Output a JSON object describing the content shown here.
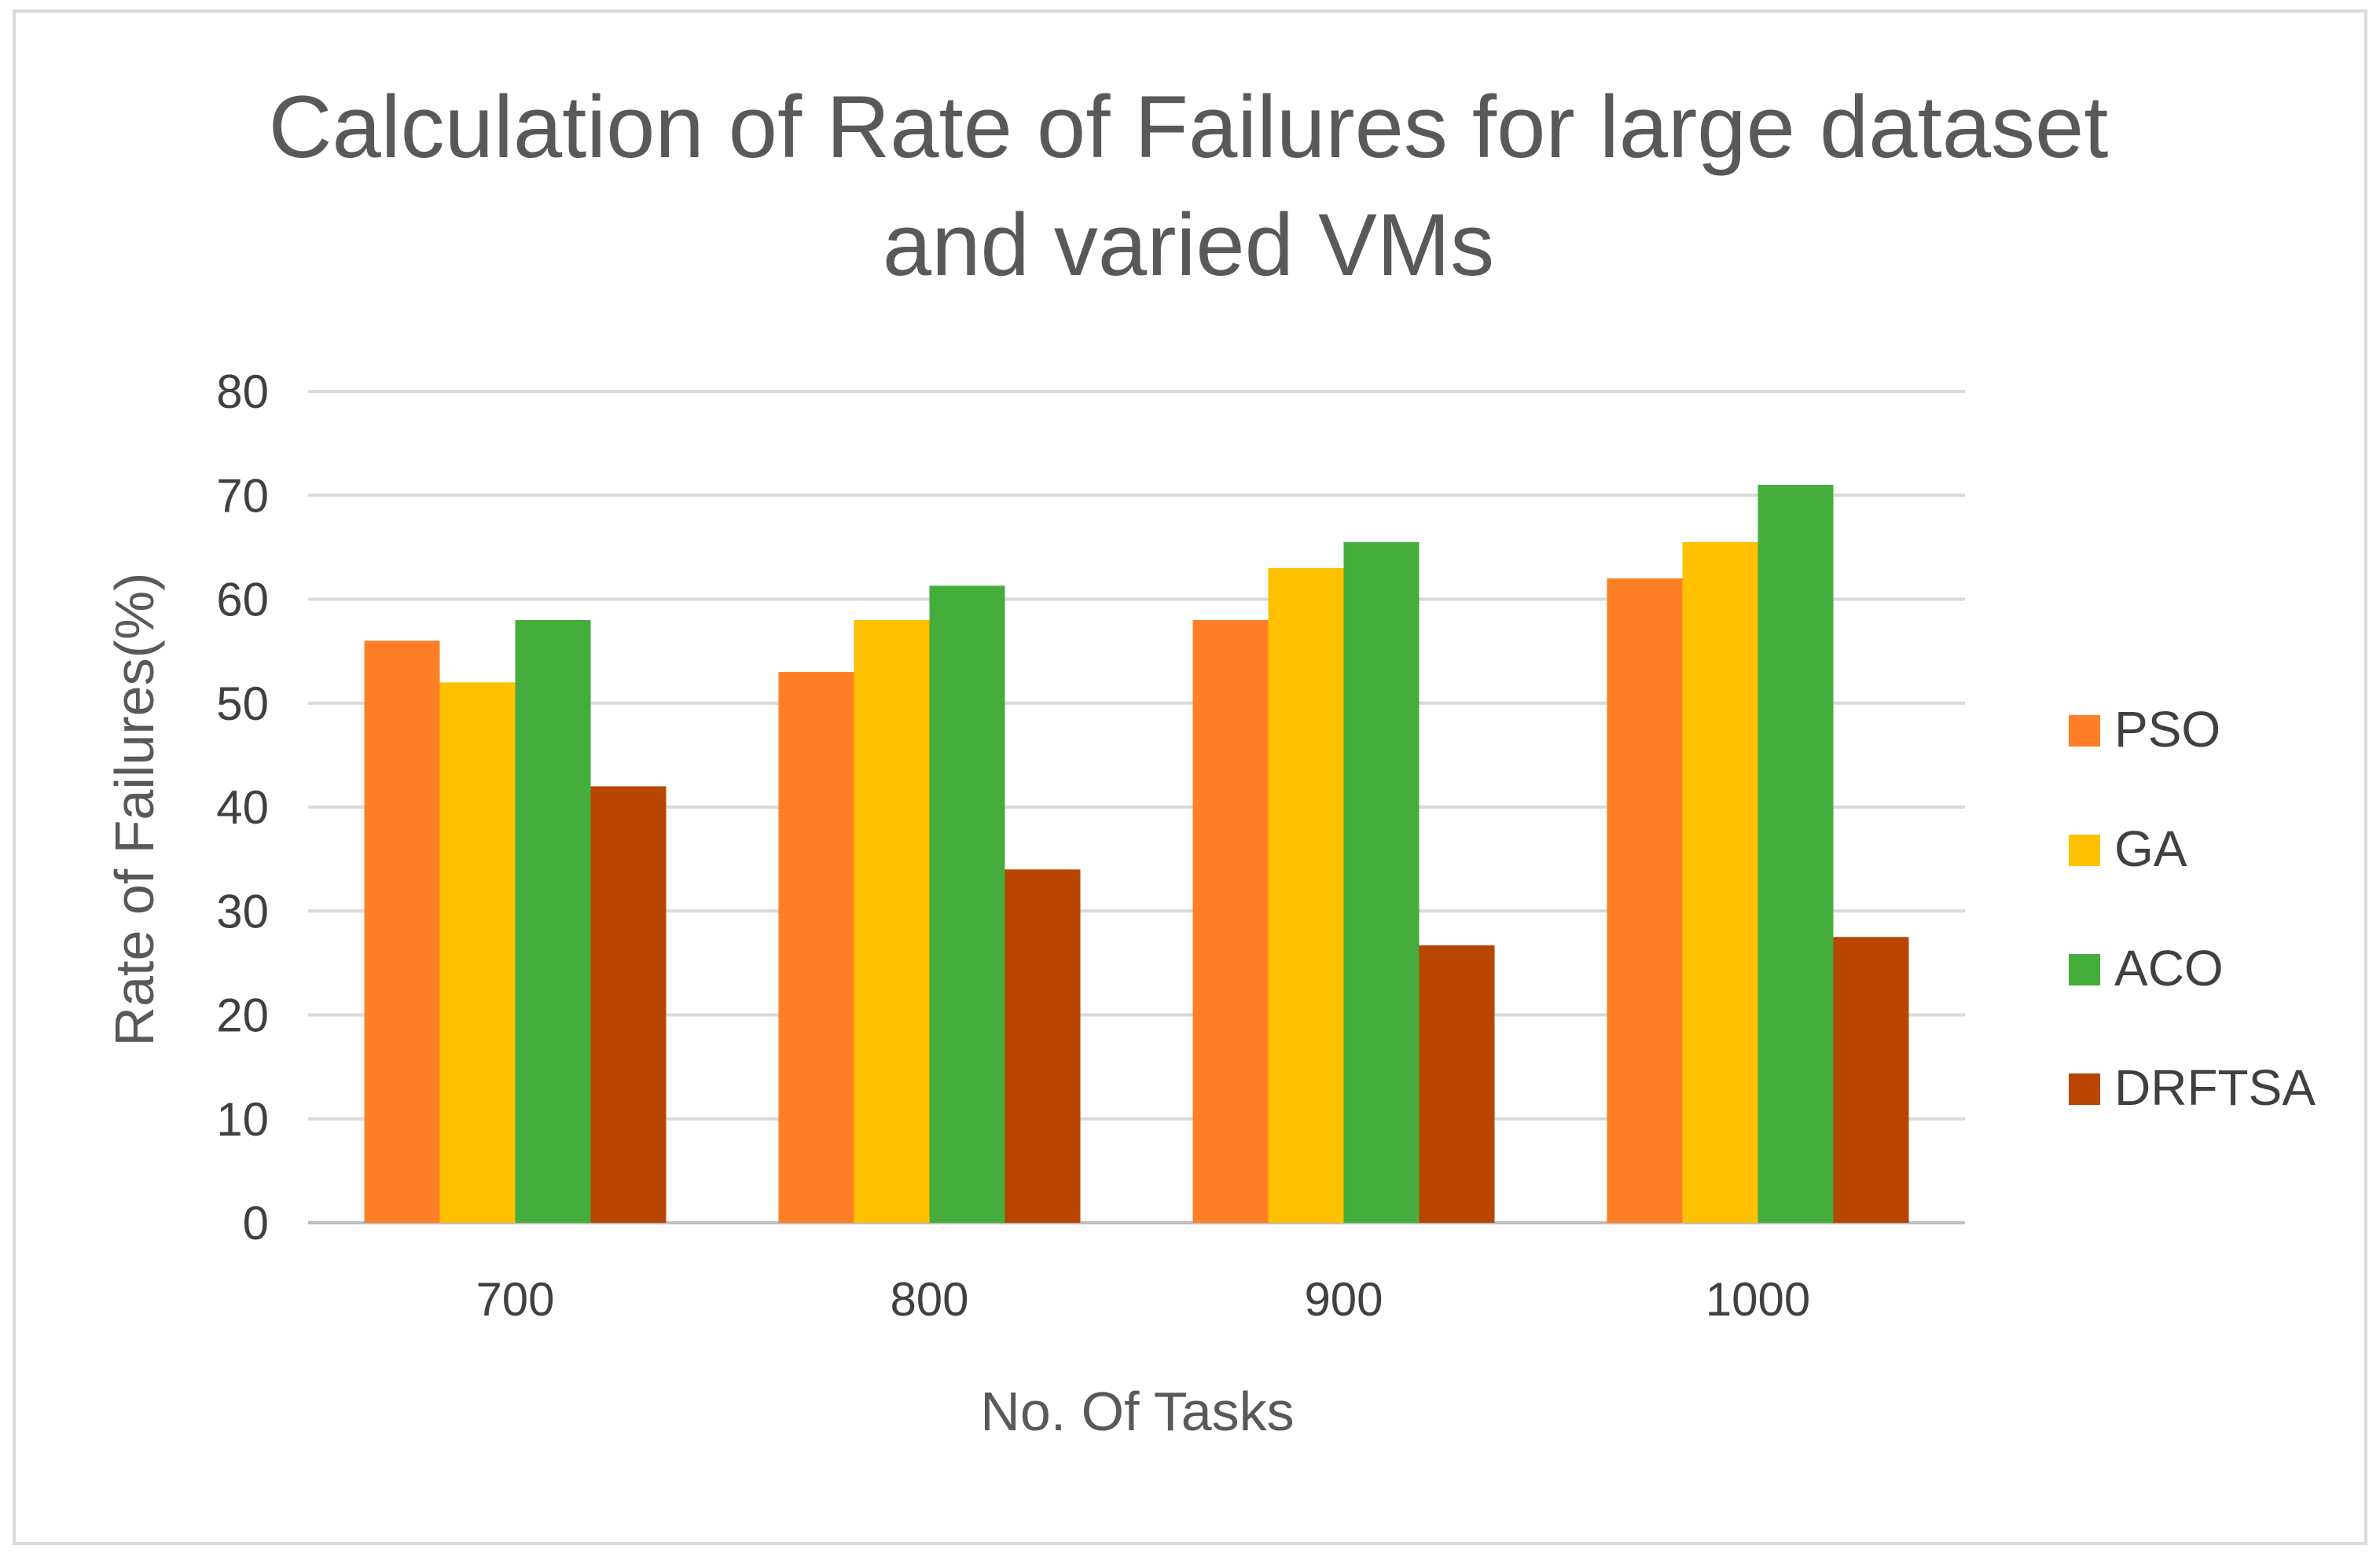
{
  "chart_data": {
    "type": "bar",
    "title": [
      "Calculation of Rate of Failures for large dataset",
      "and varied VMs"
    ],
    "xlabel": "No. Of Tasks",
    "ylabel": "Rate of Failures(%)",
    "ylim": [
      0,
      80
    ],
    "yticks": [
      "0",
      "10",
      "20",
      "30",
      "40",
      "50",
      "60",
      "70",
      "80"
    ],
    "categories": [
      "700",
      "800",
      "900",
      "1000"
    ],
    "series": [
      {
        "name": "PSO",
        "color": "#FF7F27",
        "values": [
          56,
          53,
          58,
          62
        ]
      },
      {
        "name": "GA",
        "color": "#FFC000",
        "values": [
          52,
          58,
          63,
          65.5
        ]
      },
      {
        "name": "ACO",
        "color": "#44AD3B",
        "values": [
          58,
          61.3,
          65.5,
          71
        ]
      },
      {
        "name": "DRFTSA",
        "color": "#B84500",
        "values": [
          42,
          34,
          26.7,
          27.5
        ]
      }
    ],
    "grid": true,
    "legend_position": "right"
  }
}
